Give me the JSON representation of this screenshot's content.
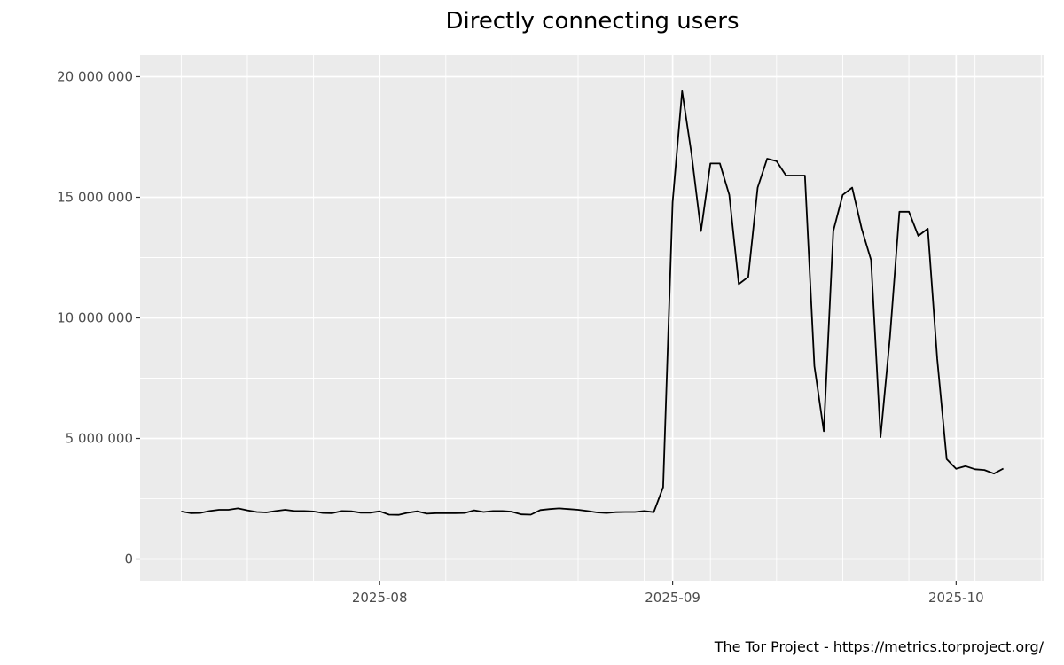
{
  "chart_data": {
    "type": "line",
    "title": "Directly connecting users",
    "xlabel": "",
    "ylabel": "",
    "caption": "The Tor Project - https://metrics.torproject.org/",
    "ylim": [
      0,
      20000000
    ],
    "y_ticks": [
      {
        "value": 0,
        "label": "0"
      },
      {
        "value": 5000000,
        "label": "5 000 000"
      },
      {
        "value": 10000000,
        "label": "10 000 000"
      },
      {
        "value": 15000000,
        "label": "15 000 000"
      },
      {
        "value": 20000000,
        "label": "20 000 000"
      }
    ],
    "x_ticks": [
      {
        "date": "2025-08-01",
        "label": "2025-08"
      },
      {
        "date": "2025-09-01",
        "label": "2025-09"
      },
      {
        "date": "2025-10-01",
        "label": "2025-10"
      }
    ],
    "grid": true,
    "background": "#ebebeb",
    "line_color": "#000000",
    "series": [
      {
        "start_date": "2025-07-11",
        "values": [
          1970000,
          1900000,
          1910000,
          1990000,
          2040000,
          2040000,
          2100000,
          2020000,
          1950000,
          1930000,
          1990000,
          2040000,
          1990000,
          1990000,
          1970000,
          1910000,
          1900000,
          1990000,
          1980000,
          1920000,
          1920000,
          1980000,
          1840000,
          1830000,
          1920000,
          1980000,
          1880000,
          1900000,
          1900000,
          1900000,
          1910000,
          2020000,
          1950000,
          1990000,
          1990000,
          1960000,
          1850000,
          1840000,
          2030000,
          2070000,
          2100000,
          2070000,
          2040000,
          1990000,
          1930000,
          1910000,
          1940000,
          1950000,
          1950000,
          1990000,
          1940000,
          2980000,
          14800000,
          19400000,
          16800000,
          13600000,
          16400000,
          16400000,
          15100000,
          11400000,
          11700000,
          15400000,
          16600000,
          16500000,
          15900000,
          15900000,
          15900000,
          8000000,
          5300000,
          13600000,
          15100000,
          15400000,
          13700000,
          12400000,
          5050000,
          9200000,
          14400000,
          14400000,
          13400000,
          13700000,
          8300000,
          4140000,
          3740000,
          3850000,
          3720000,
          3690000,
          3540000,
          3750000
        ]
      }
    ]
  }
}
